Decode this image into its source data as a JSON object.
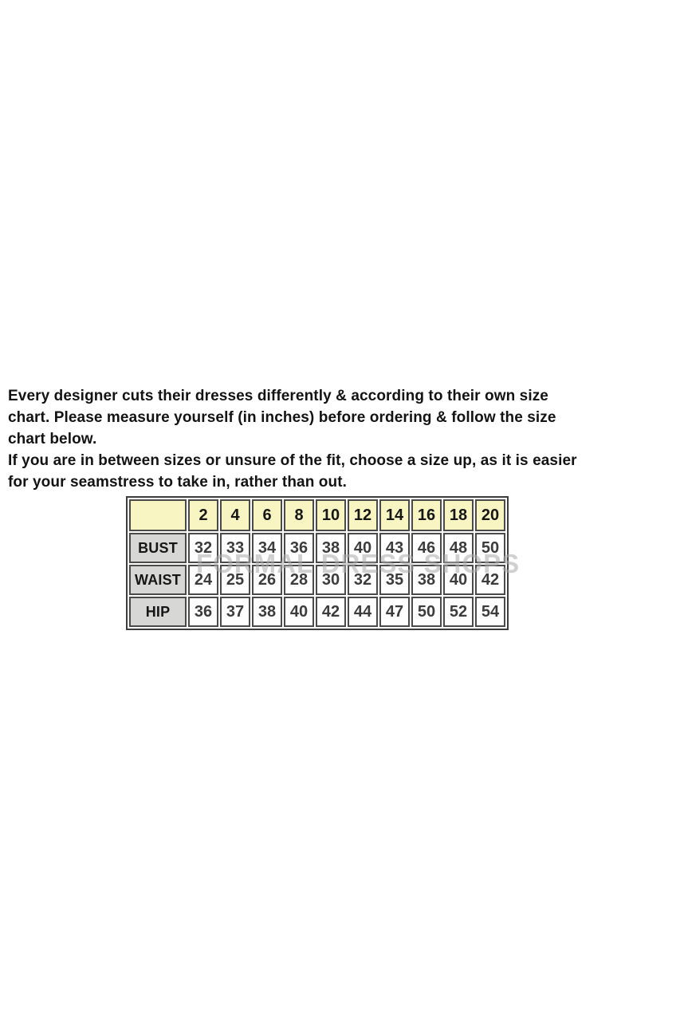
{
  "intro": {
    "lines": [
      "Every designer cuts their dresses differently & according to their own size",
      "chart. Please measure yourself (in inches) before ordering & follow the size",
      "chart below.",
      "If you are in between sizes or unsure of the fit, choose a size up, as it is easier",
      "for your seamstress to take in, rather than out."
    ]
  },
  "watermark": {
    "text": "FORMAL DRESS SHOPS"
  },
  "chart_data": {
    "type": "table",
    "unit": "inches",
    "columns": [
      "",
      "2",
      "4",
      "6",
      "8",
      "10",
      "12",
      "14",
      "16",
      "18",
      "20"
    ],
    "rows": [
      [
        "BUST",
        "32",
        "33",
        "34",
        "36",
        "38",
        "40",
        "43",
        "46",
        "48",
        "50"
      ],
      [
        "WAIST",
        "24",
        "25",
        "26",
        "28",
        "30",
        "32",
        "35",
        "38",
        "40",
        "42"
      ],
      [
        "HIP",
        "36",
        "37",
        "38",
        "40",
        "42",
        "44",
        "47",
        "50",
        "52",
        "54"
      ]
    ]
  },
  "theme": {
    "header_bg": "#f8f5c3",
    "label_bg": "#d7d7d5",
    "cell_bg": "#fefefe",
    "border": "#4a4a4a",
    "watermark": "#ababab"
  }
}
